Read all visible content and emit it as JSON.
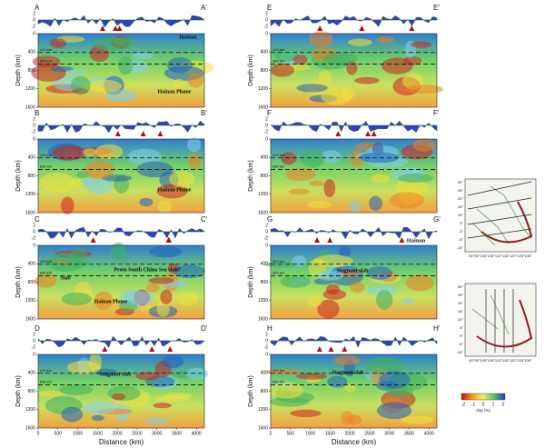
{
  "panels": [
    {
      "label": "A",
      "label_end": "A'",
      "annotations": [
        "Hainan",
        "Hainan Plume"
      ]
    },
    {
      "label": "E",
      "label_end": "E'",
      "annotations": []
    },
    {
      "label": "B",
      "label_end": "B'",
      "annotations": [
        "Hainan Plume"
      ]
    },
    {
      "label": "F",
      "label_end": "F'",
      "annotations": []
    },
    {
      "label": "C",
      "label_end": "C'",
      "annotations": [
        "Proto South China Sea slab?",
        "Slab",
        "Hainan Plume"
      ]
    },
    {
      "label": "G",
      "label_end": "G'",
      "annotations": [
        "Hainan",
        "Stagnant slab"
      ]
    },
    {
      "label": "D",
      "label_end": "D'",
      "annotations": [
        "Stagnant slab"
      ]
    },
    {
      "label": "H",
      "label_end": "H'",
      "annotations": [
        "Stagnant slab"
      ]
    }
  ],
  "discontinuities": [
    "410 km",
    "660 km"
  ],
  "topo_ticks": [
    "2",
    "0",
    "-2"
  ],
  "depth_axis": {
    "title": "Depth (km)",
    "lim": [
      0,
      1600
    ],
    "ticks": [
      0,
      400,
      800,
      1200,
      1600
    ]
  },
  "distance_axis": {
    "title": "Distance (km)",
    "lim": [
      0,
      4200
    ],
    "ticks": [
      0,
      500,
      1000,
      1500,
      2000,
      2500,
      3000,
      3500,
      4000
    ]
  },
  "maps": {
    "lat_labels": [
      "30°",
      "25°",
      "20°",
      "15°",
      "10°",
      "5°",
      "0°",
      "-5°",
      "-10°"
    ],
    "lon_label": "90°95°100°105°110°115°120°125°130°"
  },
  "colorbar": {
    "ticks": [
      "-2",
      "-1",
      "0",
      "1",
      "2"
    ],
    "title": "dvp (%)"
  }
}
